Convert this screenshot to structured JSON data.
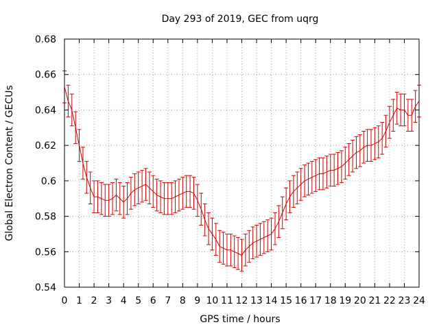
{
  "chart_data": {
    "type": "line",
    "title": "Day 293 of 2019, GEC from uqrg",
    "xlabel": "GPS time / hours",
    "ylabel": "Global Electron Content / GECUs",
    "xlim": [
      0,
      24
    ],
    "ylim": [
      0.54,
      0.68
    ],
    "xticks": [
      "0",
      "1",
      "2",
      "3",
      "4",
      "5",
      "6",
      "7",
      "8",
      "9",
      "10",
      "11",
      "12",
      "13",
      "14",
      "15",
      "16",
      "17",
      "18",
      "19",
      "20",
      "21",
      "22",
      "23",
      "24"
    ],
    "yticks": [
      "0.54",
      "0.56",
      "0.58",
      "0.6",
      "0.62",
      "0.64",
      "0.66",
      "0.68"
    ],
    "grid": true,
    "series_color": "#cc0000",
    "error_half_width": 0.009,
    "series": [
      {
        "x": [
          0.0,
          0.25,
          0.5,
          0.75,
          1.0,
          1.25,
          1.5,
          1.75,
          2.0,
          2.25,
          2.5,
          2.75,
          3.0,
          3.25,
          3.5,
          3.75,
          4.0,
          4.25,
          4.5,
          4.75,
          5.0,
          5.25,
          5.5,
          5.75,
          6.0,
          6.25,
          6.5,
          6.75,
          7.0,
          7.25,
          7.5,
          7.75,
          8.0,
          8.25,
          8.5,
          8.75,
          9.0,
          9.25,
          9.5,
          9.75,
          10.0,
          10.25,
          10.5,
          10.75,
          11.0,
          11.25,
          11.5,
          11.75,
          12.0,
          12.25,
          12.5,
          12.75,
          13.0,
          13.25,
          13.5,
          13.75,
          14.0,
          14.25,
          14.5,
          14.75,
          15.0,
          15.25,
          15.5,
          15.75,
          16.0,
          16.25,
          16.5,
          16.75,
          17.0,
          17.25,
          17.5,
          17.75,
          18.0,
          18.25,
          18.5,
          18.75,
          19.0,
          19.25,
          19.5,
          19.75,
          20.0,
          20.25,
          20.5,
          20.75,
          21.0,
          21.25,
          21.5,
          21.75,
          22.0,
          22.25,
          22.5,
          22.75,
          23.0,
          23.25,
          23.5,
          23.75,
          24.0
        ],
        "y": [
          0.653,
          0.645,
          0.64,
          0.63,
          0.62,
          0.61,
          0.602,
          0.596,
          0.591,
          0.591,
          0.59,
          0.589,
          0.589,
          0.59,
          0.592,
          0.59,
          0.588,
          0.59,
          0.593,
          0.595,
          0.596,
          0.597,
          0.598,
          0.596,
          0.594,
          0.592,
          0.591,
          0.59,
          0.59,
          0.59,
          0.591,
          0.592,
          0.593,
          0.594,
          0.594,
          0.593,
          0.589,
          0.584,
          0.578,
          0.573,
          0.57,
          0.567,
          0.563,
          0.562,
          0.561,
          0.561,
          0.56,
          0.559,
          0.558,
          0.561,
          0.563,
          0.565,
          0.566,
          0.567,
          0.568,
          0.569,
          0.57,
          0.573,
          0.577,
          0.582,
          0.587,
          0.591,
          0.594,
          0.596,
          0.598,
          0.6,
          0.601,
          0.602,
          0.603,
          0.604,
          0.604,
          0.605,
          0.606,
          0.606,
          0.607,
          0.608,
          0.61,
          0.612,
          0.614,
          0.616,
          0.617,
          0.619,
          0.62,
          0.62,
          0.621,
          0.622,
          0.624,
          0.628,
          0.633,
          0.637,
          0.641,
          0.64,
          0.64,
          0.637,
          0.637,
          0.642,
          0.645
        ]
      }
    ]
  }
}
